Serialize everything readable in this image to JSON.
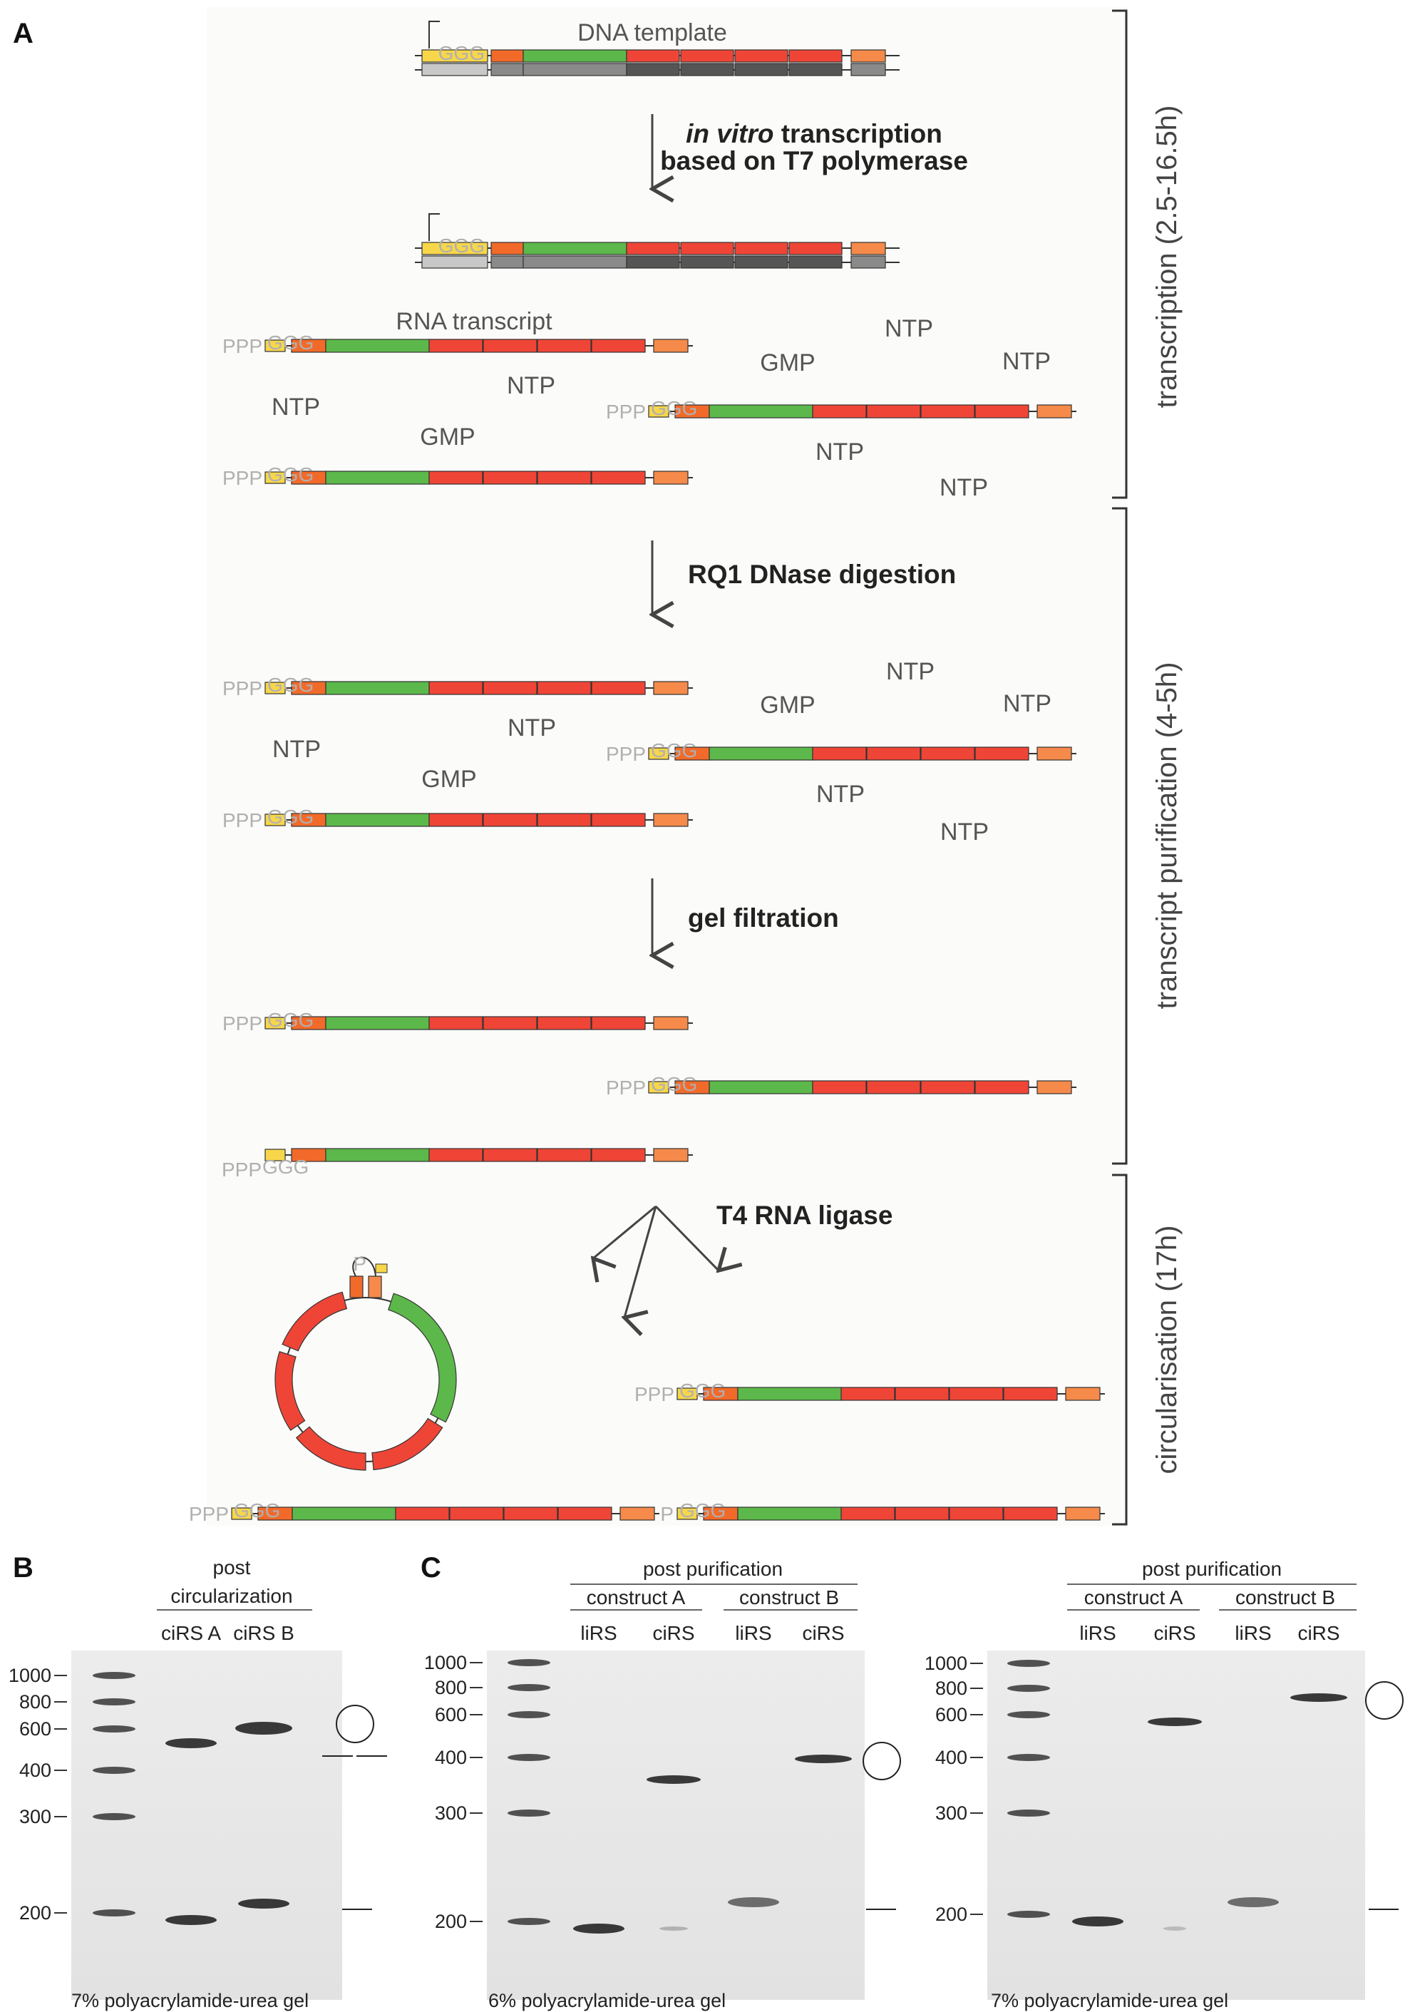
{
  "panels": {
    "a": "A",
    "b": "B",
    "c": "C"
  },
  "diagram": {
    "dna_template_label": "DNA template",
    "rna_transcript_label": "RNA transcript",
    "step1_italic": "in vitro",
    "step1_rest": " transcription",
    "step1_line2": "based on T7 polymerase",
    "step2": "RQ1 DNase digestion",
    "step3": "gel filtration",
    "step4": "T4 RNA ligase",
    "ppp": "PPP",
    "p": "P",
    "ggg": "GGG",
    "ntp": "NTP",
    "gmp": "GMP"
  },
  "phases": {
    "transcription": "transcription (2.5-16.5h)",
    "purification": "transcript purification (4-5h)",
    "circularisation": "circularisation (17h)"
  },
  "colors": {
    "yellow": "#f7d64a",
    "orange_dark": "#f26a2a",
    "orange_light": "#f58a4a",
    "green": "#5cb84a",
    "red": "#ef4537",
    "grey_light": "#c8c8c8",
    "grey_mid": "#8a8a8a",
    "grey_dark": "#555555"
  },
  "gel_b": {
    "header_line1": "post",
    "header_line2": "circularization",
    "lanes": [
      "ciRS A",
      "ciRS B"
    ],
    "ladder": [
      "1000",
      "800",
      "600",
      "400",
      "300",
      "200"
    ],
    "caption": "7% polyacrylamide-urea gel"
  },
  "gel_c1": {
    "header": "post purification",
    "construct_a": "construct A",
    "construct_b": "construct B",
    "lanes": [
      "liRS",
      "ciRS",
      "liRS",
      "ciRS"
    ],
    "ladder": [
      "1000",
      "800",
      "600",
      "400",
      "300",
      "200"
    ],
    "caption": "6% polyacrylamide-urea gel"
  },
  "gel_c2": {
    "header": "post purification",
    "construct_a": "construct A",
    "construct_b": "construct B",
    "lanes": [
      "liRS",
      "ciRS",
      "liRS",
      "ciRS"
    ],
    "ladder": [
      "1000",
      "800",
      "600",
      "400",
      "300",
      "200"
    ],
    "caption": "7% polyacrylamide-urea gel"
  }
}
